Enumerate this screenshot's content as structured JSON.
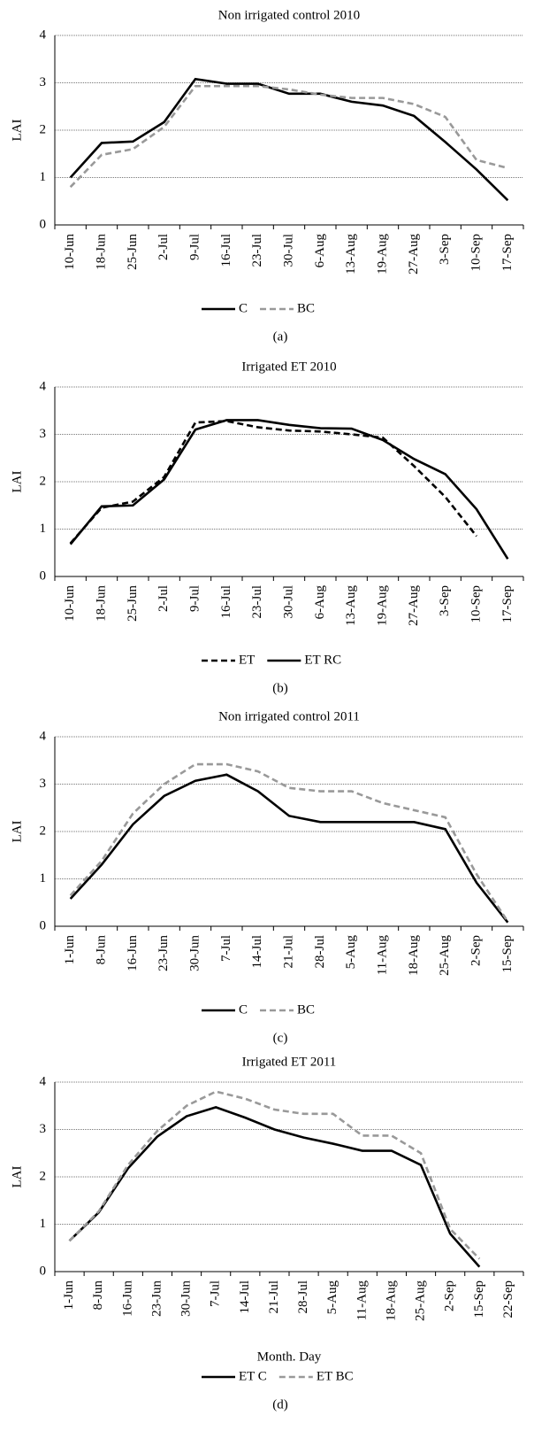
{
  "chart_data": [
    {
      "type": "line",
      "title": "Non irrigated control 2010",
      "caption": "(a)",
      "ylabel": "LAI",
      "categories": [
        "10-Jun",
        "18-Jun",
        "25-Jun",
        "2-Jul",
        "9-Jul",
        "16-Jul",
        "23-Jul",
        "30-Jul",
        "6-Aug",
        "13-Aug",
        "19-Aug",
        "27-Aug",
        "3-Sep",
        "10-Sep",
        "17-Sep"
      ],
      "series": [
        {
          "name": "C",
          "color": "#000000",
          "dash": "solid",
          "values": [
            1.0,
            1.73,
            1.76,
            2.17,
            3.08,
            2.98,
            2.98,
            2.77,
            2.77,
            2.6,
            2.52,
            2.3,
            1.75,
            1.17,
            0.52
          ]
        },
        {
          "name": "BC",
          "color": "#999999",
          "dash": "dashed",
          "values": [
            0.8,
            1.48,
            1.6,
            2.07,
            2.93,
            2.93,
            2.93,
            2.86,
            2.75,
            2.68,
            2.68,
            2.55,
            2.28,
            1.37,
            1.2
          ]
        }
      ],
      "ylim": [
        0,
        4
      ],
      "yticks": [
        0,
        1,
        2,
        3,
        4
      ],
      "grid": true
    },
    {
      "type": "line",
      "title": "Irrigated ET 2010",
      "caption": "(b)",
      "ylabel": "LAI",
      "categories": [
        "10-Jun",
        "18-Jun",
        "25-Jun",
        "2-Jul",
        "9-Jul",
        "16-Jul",
        "23-Jul",
        "30-Jul",
        "6-Aug",
        "13-Aug",
        "19-Aug",
        "27-Aug",
        "3-Sep",
        "10-Sep",
        "17-Sep"
      ],
      "series": [
        {
          "name": "ET",
          "color": "#000000",
          "dash": "dashed",
          "values": [
            0.7,
            1.45,
            1.58,
            2.1,
            3.25,
            3.28,
            3.15,
            3.08,
            3.06,
            3.0,
            2.93,
            2.33,
            1.68,
            0.85,
            null
          ]
        },
        {
          "name": "ET RC",
          "color": "#000000",
          "dash": "solid",
          "values": [
            0.68,
            1.48,
            1.5,
            2.05,
            3.1,
            3.3,
            3.3,
            3.2,
            3.13,
            3.12,
            2.88,
            2.48,
            2.16,
            1.42,
            0.37
          ]
        }
      ],
      "ylim": [
        0,
        4
      ],
      "yticks": [
        0,
        1,
        2,
        3,
        4
      ],
      "grid": true
    },
    {
      "type": "line",
      "title": "Non irrigated control 2011",
      "caption": "(c)",
      "ylabel": "LAI",
      "categories": [
        "1-Jun",
        "8-Jun",
        "16-Jun",
        "23-Jun",
        "30-Jun",
        "7-Jul",
        "14-Jul",
        "21-Jul",
        "28-Jul",
        "5-Aug",
        "11-Aug",
        "18-Aug",
        "25-Aug",
        "2-Sep",
        "15-Sep"
      ],
      "series": [
        {
          "name": "C",
          "color": "#000000",
          "dash": "solid",
          "values": [
            0.58,
            1.3,
            2.15,
            2.75,
            3.07,
            3.2,
            2.85,
            2.33,
            2.2,
            2.2,
            2.2,
            2.2,
            2.05,
            0.92,
            0.08
          ]
        },
        {
          "name": "BC",
          "color": "#999999",
          "dash": "dashed",
          "values": [
            0.65,
            1.38,
            2.38,
            3.0,
            3.42,
            3.42,
            3.27,
            2.92,
            2.85,
            2.85,
            2.6,
            2.45,
            2.3,
            1.1,
            0.1
          ]
        }
      ],
      "ylim": [
        0,
        4
      ],
      "yticks": [
        0,
        1,
        2,
        3,
        4
      ],
      "grid": true
    },
    {
      "type": "line",
      "title": "Irrigated ET 2011",
      "caption": "(d)",
      "ylabel": "LAI",
      "xlabel": "Month. Day",
      "categories": [
        "1-Jun",
        "8-Jun",
        "16-Jun",
        "23-Jun",
        "30-Jun",
        "7-Jul",
        "14-Jul",
        "21-Jul",
        "28-Jul",
        "5-Aug",
        "11-Aug",
        "18-Aug",
        "25-Aug",
        "2-Sep",
        "15-Sep",
        "22-Sep"
      ],
      "series": [
        {
          "name": "ET C",
          "color": "#000000",
          "dash": "solid",
          "values": [
            0.65,
            1.25,
            2.18,
            2.85,
            3.28,
            3.47,
            3.25,
            3.0,
            2.83,
            2.7,
            2.55,
            2.55,
            2.25,
            0.8,
            0.1,
            null
          ]
        },
        {
          "name": "ET BC",
          "color": "#999999",
          "dash": "dashed",
          "values": [
            0.65,
            1.27,
            2.25,
            2.97,
            3.5,
            3.8,
            3.65,
            3.42,
            3.33,
            3.33,
            2.87,
            2.87,
            2.5,
            0.9,
            0.27,
            null
          ]
        }
      ],
      "ylim": [
        0,
        4
      ],
      "yticks": [
        0,
        1,
        2,
        3,
        4
      ],
      "grid": true
    }
  ]
}
